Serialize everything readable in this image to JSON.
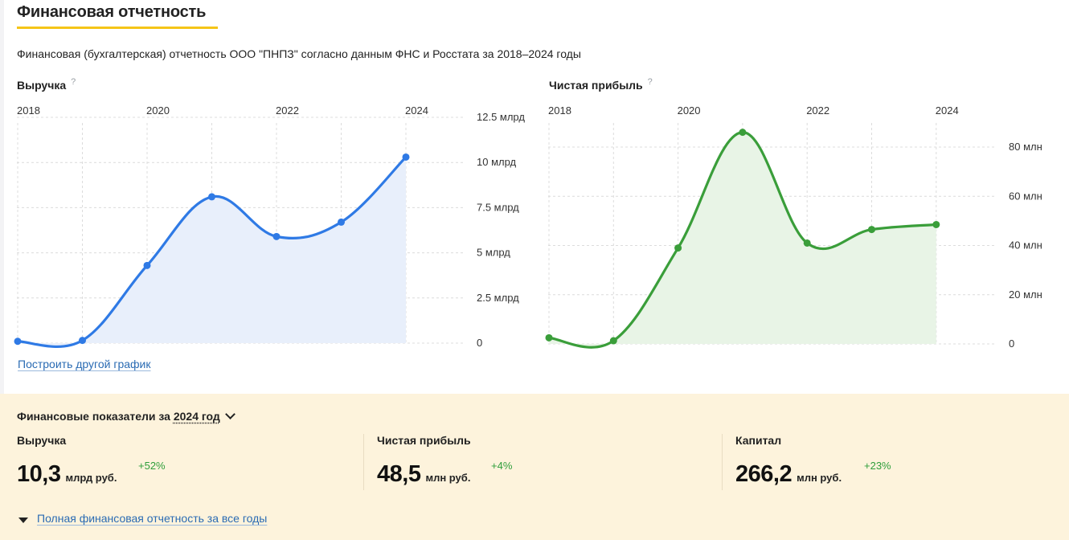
{
  "section": {
    "title": "Финансовая отчетность",
    "subtitle": "Финансовая (бухгалтерская) отчетность ООО \"ПНПЗ\" согласно данным ФНС и Росстата за 2018–2024 годы"
  },
  "colors": {
    "accent_yellow": "#f5c518",
    "revenue_line": "#2f7ae5",
    "revenue_fill": "#e8effb",
    "profit_line": "#3a9e3a",
    "profit_fill": "#e8f4e6",
    "panel_bg": "#fdf3dc",
    "link": "#2a6bb3",
    "positive_change": "#2f9e3b"
  },
  "icons": {
    "help": "question-mark-icon",
    "dropdown": "chevron-down-icon",
    "expand": "triangle-down-icon"
  },
  "charts": {
    "revenue_label": "Выручка",
    "profit_label": "Чистая прибыль",
    "help_mark": "?",
    "build_link": "Построить другой график"
  },
  "chart_data": [
    {
      "type": "area",
      "title": "Выручка",
      "x": [
        2018,
        2019,
        2020,
        2021,
        2022,
        2023,
        2024
      ],
      "x_tick_labels": [
        "2018",
        "2020",
        "2022",
        "2024"
      ],
      "values": [
        0.1,
        0.15,
        4.3,
        8.1,
        5.9,
        6.7,
        10.3
      ],
      "ylim": [
        0,
        12.5
      ],
      "y_ticks": [
        0,
        2.5,
        5,
        7.5,
        10,
        12.5
      ],
      "y_tick_labels": [
        "0",
        "2.5 млрд",
        "5 млрд",
        "7.5 млрд",
        "10 млрд",
        "12.5 млрд"
      ],
      "grid": true,
      "y_axis_position": "right",
      "x_axis_position": "top"
    },
    {
      "type": "area",
      "title": "Чистая прибыль",
      "x": [
        2018,
        2019,
        2020,
        2021,
        2022,
        2023,
        2024
      ],
      "x_tick_labels": [
        "2018",
        "2020",
        "2022",
        "2024"
      ],
      "values": [
        2.5,
        1.3,
        39,
        86,
        41,
        46.5,
        48.5
      ],
      "ylim": [
        0,
        90
      ],
      "y_ticks": [
        0,
        20,
        40,
        60,
        80
      ],
      "y_tick_labels": [
        "0",
        "20 млн",
        "40 млн",
        "60 млн",
        "80 млн"
      ],
      "grid": true,
      "y_axis_position": "right",
      "x_axis_position": "top"
    }
  ],
  "financials": {
    "header_prefix": "Финансовые показатели за",
    "year_selected": "2024 год",
    "metrics": [
      {
        "label": "Выручка",
        "value": "10,3",
        "unit": "млрд руб.",
        "change": "+52%"
      },
      {
        "label": "Чистая прибыль",
        "value": "48,5",
        "unit": "млн руб.",
        "change": "+4%"
      },
      {
        "label": "Капитал",
        "value": "266,2",
        "unit": "млн руб.",
        "change": "+23%"
      }
    ],
    "full_report_link": "Полная финансовая отчетность за все годы"
  }
}
